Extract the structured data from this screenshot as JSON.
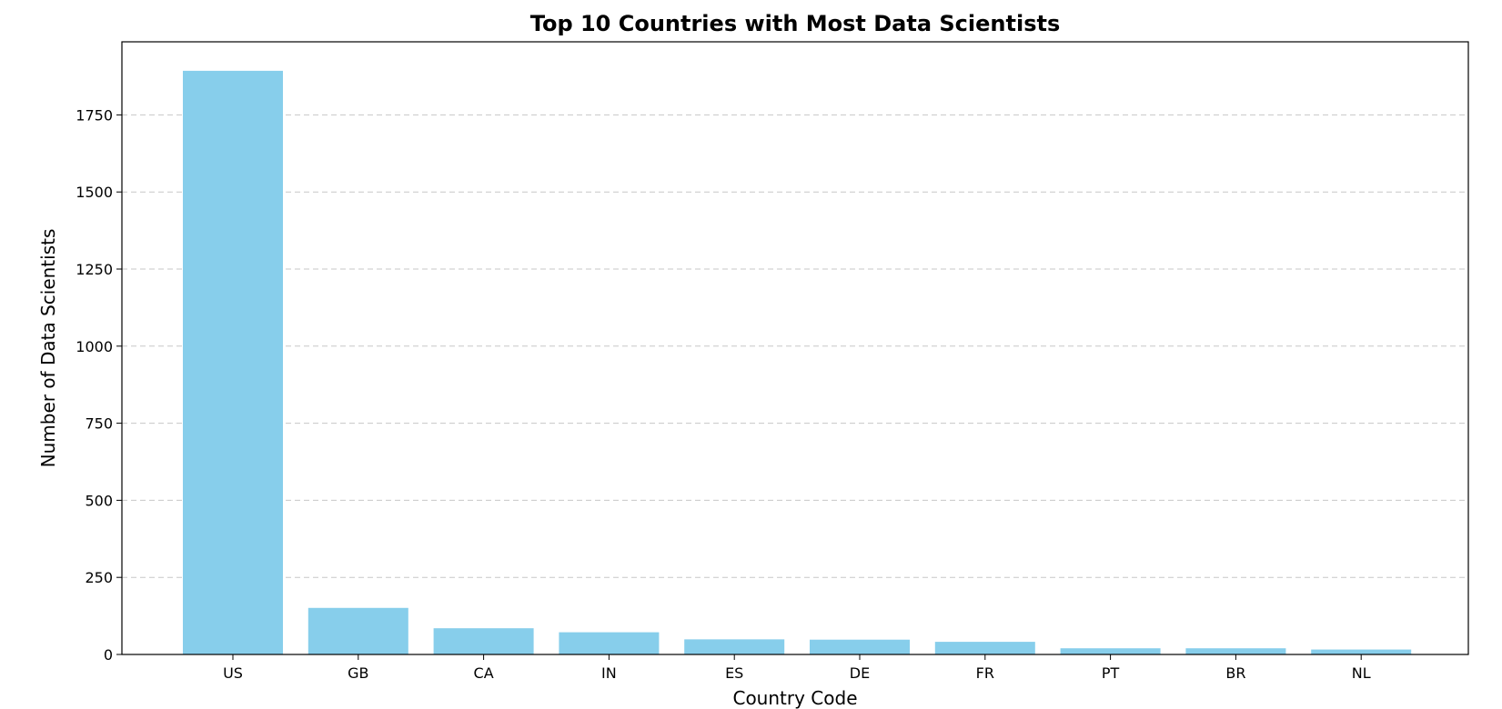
{
  "chart_data": {
    "type": "bar",
    "title": "Top 10 Countries with Most Data Scientists",
    "xlabel": "Country Code",
    "ylabel": "Number of Data Scientists",
    "categories": [
      "US",
      "GB",
      "CA",
      "IN",
      "ES",
      "DE",
      "FR",
      "PT",
      "BR",
      "NL"
    ],
    "values": [
      1893,
      151,
      85,
      72,
      49,
      48,
      41,
      20,
      20,
      16
    ],
    "ylim": [
      0,
      1987
    ],
    "yticks": [
      0,
      250,
      500,
      750,
      1000,
      1250,
      1500,
      1750
    ],
    "bar_color": "#87CEEB",
    "grid": "y-axis dashed",
    "legend": "none"
  }
}
